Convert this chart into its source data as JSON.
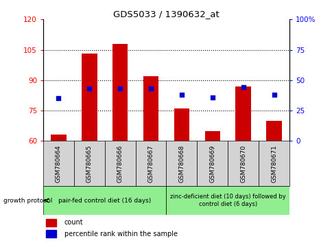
{
  "title": "GDS5033 / 1390632_at",
  "samples": [
    "GSM780664",
    "GSM780665",
    "GSM780666",
    "GSM780667",
    "GSM780668",
    "GSM780669",
    "GSM780670",
    "GSM780671"
  ],
  "counts": [
    63,
    103,
    108,
    92,
    76,
    65,
    87,
    70
  ],
  "percentiles": [
    35,
    43,
    43,
    43,
    38,
    36,
    44,
    38
  ],
  "ylim_left": [
    60,
    120
  ],
  "ylim_right": [
    0,
    100
  ],
  "yticks_left": [
    60,
    75,
    90,
    105,
    120
  ],
  "yticks_right": [
    0,
    25,
    50,
    75,
    100
  ],
  "bar_color": "#cc0000",
  "dot_color": "#0000cc",
  "bar_bottom": 60,
  "grid_values": [
    75,
    90,
    105
  ],
  "group1_label": "pair-fed control diet (16 days)",
  "group2_label": "zinc-deficient diet (10 days) followed by\ncontrol diet (6 days)",
  "group1_indices": [
    0,
    1,
    2,
    3
  ],
  "group2_indices": [
    4,
    5,
    6,
    7
  ],
  "protocol_label": "growth protocol",
  "legend1": "count",
  "legend2": "percentile rank within the sample",
  "bg_color_gray": "#d3d3d3",
  "bg_color_green": "#90ee90"
}
